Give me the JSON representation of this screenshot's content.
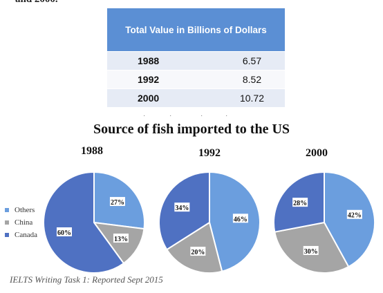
{
  "top_fragment": "and 2000.",
  "table": {
    "header": "Total Value in Billions of Dollars",
    "rows": [
      {
        "year": "1988",
        "value": "6.57"
      },
      {
        "year": "1992",
        "value": "8.52"
      },
      {
        "year": "2000",
        "value": "10.72"
      }
    ]
  },
  "colors": {
    "Others": "#6b9ede",
    "China": "#a5a5a5",
    "Canada": "#4f71c2"
  },
  "chart_data": {
    "type": "pie",
    "title": "Source of fish imported to the US",
    "categories": [
      "Others",
      "China",
      "Canada"
    ],
    "legend_position": "left",
    "pies": [
      {
        "name": "1988",
        "values": [
          27,
          13,
          60
        ],
        "labels": [
          "27%",
          "13%",
          "60%"
        ]
      },
      {
        "name": "1992",
        "values": [
          46,
          20,
          34
        ],
        "labels": [
          "46%",
          "20%",
          "34%"
        ]
      },
      {
        "name": "2000",
        "values": [
          42,
          30,
          28
        ],
        "labels": [
          "42%",
          "30%",
          "28%"
        ]
      }
    ]
  },
  "caption": "IELTS Writing Task 1: Reported Sept 2015"
}
